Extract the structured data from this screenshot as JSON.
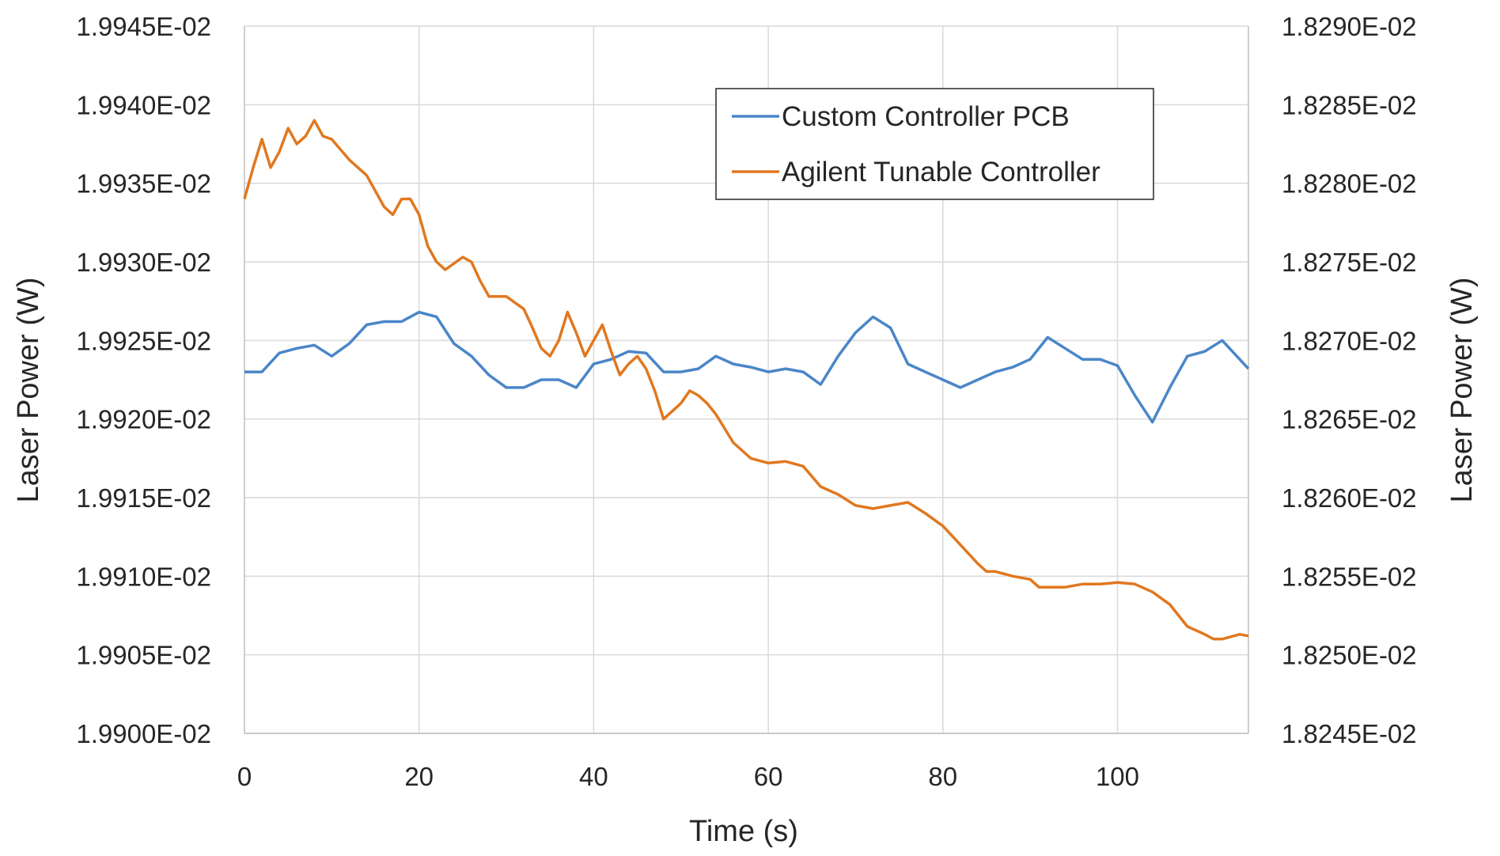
{
  "chart_data": {
    "type": "line",
    "xlabel": "Time (s)",
    "ylabel_left": "Laser Power (W)",
    "ylabel_right": "Laser Power (W)",
    "xlim": [
      0,
      115
    ],
    "ylim_left": [
      0.0199,
      0.019945
    ],
    "ylim_right": [
      0.018245,
      0.01829
    ],
    "x_ticks": [
      "0",
      "20",
      "40",
      "60",
      "80",
      "100"
    ],
    "x_tick_values": [
      0,
      20,
      40,
      60,
      80,
      100
    ],
    "y_left_ticks": [
      "1.9900E-02",
      "1.9905E-02",
      "1.9910E-02",
      "1.9915E-02",
      "1.9920E-02",
      "1.9925E-02",
      "1.9930E-02",
      "1.9935E-02",
      "1.9940E-02",
      "1.9945E-02"
    ],
    "y_left_tick_values": [
      0.0199,
      0.019905,
      0.01991,
      0.019915,
      0.01992,
      0.019925,
      0.01993,
      0.019935,
      0.01994,
      0.019945
    ],
    "y_right_ticks": [
      "1.8245E-02",
      "1.8250E-02",
      "1.8255E-02",
      "1.8260E-02",
      "1.8265E-02",
      "1.8270E-02",
      "1.8275E-02",
      "1.8280E-02",
      "1.8285E-02",
      "1.8290E-02"
    ],
    "y_right_tick_values": [
      0.018245,
      0.01825,
      0.018255,
      0.01826,
      0.018265,
      0.01827,
      0.018275,
      0.01828,
      0.018285,
      0.01829
    ],
    "grid": true,
    "legend_position": "top-right",
    "series": [
      {
        "name": "Custom Controller PCB",
        "axis": "left",
        "color": "#4a86c8",
        "x": [
          0,
          2,
          4,
          6,
          8,
          10,
          12,
          14,
          16,
          18,
          20,
          22,
          24,
          26,
          28,
          30,
          32,
          34,
          36,
          38,
          40,
          42,
          44,
          46,
          48,
          50,
          52,
          54,
          56,
          58,
          60,
          62,
          64,
          66,
          68,
          70,
          72,
          74,
          76,
          78,
          80,
          82,
          84,
          86,
          88,
          90,
          92,
          94,
          96,
          98,
          100,
          102,
          104,
          106,
          108,
          110,
          112,
          114,
          115
        ],
        "y": [
          0.019923,
          0.019923,
          0.0199242,
          0.0199245,
          0.0199247,
          0.019924,
          0.0199248,
          0.019926,
          0.0199262,
          0.0199262,
          0.0199268,
          0.0199265,
          0.0199248,
          0.019924,
          0.0199228,
          0.019922,
          0.019922,
          0.0199225,
          0.0199225,
          0.019922,
          0.0199235,
          0.0199238,
          0.0199243,
          0.0199242,
          0.019923,
          0.019923,
          0.0199232,
          0.019924,
          0.0199235,
          0.0199233,
          0.019923,
          0.0199232,
          0.019923,
          0.0199222,
          0.019924,
          0.0199255,
          0.0199265,
          0.0199258,
          0.0199235,
          0.019923,
          0.0199225,
          0.019922,
          0.0199225,
          0.019923,
          0.0199233,
          0.0199238,
          0.0199252,
          0.0199245,
          0.0199238,
          0.0199238,
          0.0199234,
          0.0199215,
          0.0199198,
          0.019922,
          0.019924,
          0.0199243,
          0.019925,
          0.0199238,
          0.0199232
        ]
      },
      {
        "name": "Agilent Tunable Controller",
        "axis": "right",
        "color": "#e07820",
        "x": [
          0,
          1,
          2,
          3,
          4,
          5,
          6,
          7,
          8,
          9,
          10,
          12,
          14,
          16,
          17,
          18,
          19,
          20,
          21,
          22,
          23,
          25,
          26,
          27,
          28,
          30,
          32,
          33,
          34,
          35,
          36,
          37,
          38,
          39,
          40,
          41,
          42,
          43,
          44,
          45,
          46,
          47,
          48,
          50,
          51,
          52,
          53,
          54,
          56,
          58,
          60,
          62,
          64,
          66,
          68,
          70,
          72,
          74,
          76,
          78,
          80,
          82,
          84,
          85,
          86,
          88,
          90,
          91,
          92,
          94,
          96,
          98,
          100,
          102,
          104,
          106,
          108,
          110,
          111,
          112,
          114,
          115
        ],
        "y": [
          0.018279,
          0.018281,
          0.0182828,
          0.018281,
          0.018282,
          0.0182835,
          0.0182825,
          0.018283,
          0.018284,
          0.018283,
          0.0182828,
          0.0182815,
          0.0182805,
          0.0182785,
          0.018278,
          0.018279,
          0.018279,
          0.018278,
          0.018276,
          0.018275,
          0.0182745,
          0.0182753,
          0.018275,
          0.0182738,
          0.0182728,
          0.0182728,
          0.018272,
          0.0182708,
          0.0182695,
          0.018269,
          0.01827,
          0.0182718,
          0.0182705,
          0.018269,
          0.01827,
          0.018271,
          0.0182693,
          0.0182678,
          0.0182685,
          0.018269,
          0.0182682,
          0.0182668,
          0.018265,
          0.018266,
          0.0182668,
          0.0182665,
          0.018266,
          0.0182653,
          0.0182635,
          0.0182625,
          0.0182622,
          0.0182623,
          0.018262,
          0.0182607,
          0.0182602,
          0.0182595,
          0.0182593,
          0.0182595,
          0.0182597,
          0.018259,
          0.0182582,
          0.018257,
          0.0182558,
          0.0182553,
          0.0182553,
          0.018255,
          0.0182548,
          0.0182543,
          0.0182543,
          0.0182543,
          0.0182545,
          0.0182545,
          0.0182546,
          0.0182545,
          0.018254,
          0.0182532,
          0.0182518,
          0.0182513,
          0.018251,
          0.018251,
          0.0182513,
          0.0182512
        ]
      }
    ]
  }
}
